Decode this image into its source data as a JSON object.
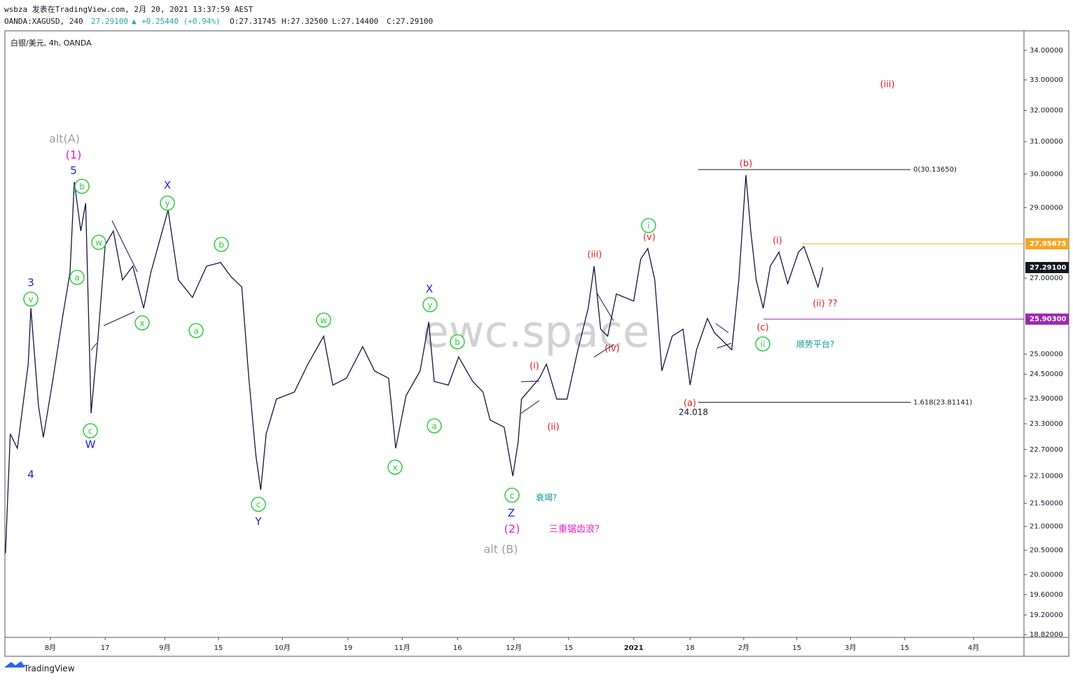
{
  "header": {
    "author_line": "wsbza 发表在TradingView.com, 2月 20, 2021 13:37:59 AEST",
    "symbol": "OANDA:XAGUSD, 240",
    "last": "27.29100",
    "arrow": "▲",
    "change": "+0.25440 (+0.94%)",
    "open": "O:27.31745",
    "high": "H:27.32500",
    "low": "L:27.14400",
    "close": "C:27.29100"
  },
  "footer": {
    "brand": "TradingView"
  },
  "chart_data": {
    "type": "line",
    "title": "白银/美元, 4h, OANDA",
    "watermark": "ewc.space",
    "log_scale": true,
    "color": "#131340",
    "xlim": [
      0,
      188
    ],
    "ylim": [
      18.77,
      34.68
    ],
    "x": [
      0.1,
      1.0,
      2.3,
      4.3,
      4.8,
      6.2,
      7.1,
      8.8,
      10.7,
      12.0,
      12.8,
      14.0,
      14.9,
      15.9,
      17.2,
      18.5,
      20.0,
      21.7,
      23.6,
      25.6,
      26.9,
      30.1,
      32.0,
      34.6,
      37.2,
      39.8,
      41.7,
      43.7,
      45.0,
      46.3,
      47.2,
      48.2,
      50.1,
      53.4,
      55.9,
      58.8,
      60.5,
      63.0,
      66.0,
      68.2,
      70.8,
      72.1,
      74.0,
      76.6,
      78.2,
      79.2,
      81.8,
      83.7,
      86.3,
      88.2,
      89.5,
      92.1,
      93.7,
      94.7,
      95.3,
      98.6,
      99.9,
      101.8,
      103.7,
      105.7,
      107.6,
      108.7,
      109.9,
      111.2,
      112.8,
      116.0,
      117.3,
      118.6,
      119.9,
      121.2,
      123.1,
      125.1,
      126.4,
      127.6,
      129.6,
      130.9,
      134.1,
      135.4,
      136.7,
      137.6,
      138.6,
      139.9,
      141.2,
      142.8,
      144.4,
      146.4,
      147.4,
      148.7,
      150.0,
      150.9
    ],
    "values": [
      20.44,
      23.06,
      22.73,
      24.75,
      26.19,
      23.72,
      22.98,
      24.32,
      26.01,
      27.14,
      29.76,
      28.32,
      29.13,
      23.55,
      25.46,
      27.92,
      28.32,
      26.95,
      27.33,
      26.19,
      27.14,
      28.93,
      26.95,
      26.48,
      27.33,
      27.43,
      27.04,
      26.76,
      24.4,
      22.57,
      21.79,
      23.06,
      23.89,
      24.06,
      24.75,
      25.46,
      24.23,
      24.4,
      25.19,
      24.58,
      24.4,
      22.73,
      23.97,
      24.58,
      25.83,
      24.32,
      24.23,
      24.93,
      24.32,
      24.06,
      23.39,
      23.22,
      22.1,
      22.89,
      23.89,
      24.4,
      24.75,
      23.89,
      23.89,
      25.11,
      26.19,
      27.33,
      25.64,
      25.46,
      26.57,
      26.38,
      27.53,
      27.82,
      26.95,
      24.58,
      25.46,
      25.64,
      24.23,
      25.11,
      25.92,
      25.55,
      25.11,
      26.95,
      29.97,
      28.32,
      26.95,
      26.19,
      27.33,
      27.72,
      26.85,
      27.72,
      27.88,
      27.33,
      26.76,
      27.291
    ],
    "yticks": [
      {
        "value": 34,
        "label": "34.00000"
      },
      {
        "value": 33,
        "label": "33.00000"
      },
      {
        "value": 32,
        "label": "32.00000"
      },
      {
        "value": 31,
        "label": "31.00000"
      },
      {
        "value": 30,
        "label": "30.00000"
      },
      {
        "value": 29,
        "label": "29.00000"
      },
      {
        "value": 27,
        "label": "27.00000"
      },
      {
        "value": 25,
        "label": "25.00000"
      },
      {
        "value": 24.5,
        "label": "24.50000"
      },
      {
        "value": 23.9,
        "label": "23.90000"
      },
      {
        "value": 23.3,
        "label": "23.30000"
      },
      {
        "value": 22.7,
        "label": "22.70000"
      },
      {
        "value": 22.1,
        "label": "22.10000"
      },
      {
        "value": 21.5,
        "label": "21.50000"
      },
      {
        "value": 21,
        "label": "21.00000"
      },
      {
        "value": 20.5,
        "label": "20.50000"
      },
      {
        "value": 20,
        "label": "20.00000"
      },
      {
        "value": 19.6,
        "label": "19.60000"
      },
      {
        "value": 19.2,
        "label": "19.20000"
      },
      {
        "value": 18.82,
        "label": "18.82000"
      }
    ],
    "xticks": [
      {
        "value": 8.4,
        "label": "8月"
      },
      {
        "value": 18.5,
        "label": "17"
      },
      {
        "value": 29.5,
        "label": "9月"
      },
      {
        "value": 39.4,
        "label": "15"
      },
      {
        "value": 51.2,
        "label": "10月"
      },
      {
        "value": 63.3,
        "label": "19"
      },
      {
        "value": 73.3,
        "label": "11月"
      },
      {
        "value": 83.5,
        "label": "16"
      },
      {
        "value": 93.9,
        "label": "12月"
      },
      {
        "value": 104,
        "label": "15"
      },
      {
        "value": 116,
        "label": "2021"
      },
      {
        "value": 126.4,
        "label": "18"
      },
      {
        "value": 136.3,
        "label": "2月"
      },
      {
        "value": 146.1,
        "label": "15"
      },
      {
        "value": 156,
        "label": "3月"
      },
      {
        "value": 166,
        "label": "15"
      },
      {
        "value": 178.7,
        "label": "4月"
      }
    ],
    "price_labels": [
      {
        "value": 27.95675,
        "label": "27.95675",
        "color": "#f5a623"
      },
      {
        "value": 27.291,
        "label": "27.29100",
        "color": "#131722"
      },
      {
        "value": 25.903,
        "label": "25.90300",
        "color": "#9c27b0"
      }
    ],
    "fib_levels": [
      {
        "value": 30.1365,
        "label": "0(30.13650)"
      },
      {
        "value": 23.81141,
        "label": "1.618(23.81141)"
      }
    ],
    "annotations": [
      "3",
      "4",
      "5",
      "W",
      "X",
      "Y",
      "X",
      "Z",
      "alt(A)",
      "alt (B)",
      "(1)",
      "(2)",
      "三重锯齿浪？",
      "v",
      "a",
      "b",
      "w",
      "c",
      "x",
      "y",
      "b",
      "a",
      "c",
      "w",
      "b",
      "y",
      "a",
      "x",
      "c",
      "i",
      "ii",
      "衰竭?",
      "顺势平台?",
      "(iii)",
      "(b)",
      "(i)",
      "(ii) ??",
      "(c)",
      "(a)",
      "(iii)",
      "(v)",
      "(iv)",
      "(i)",
      "(ii)",
      "24.018"
    ]
  }
}
